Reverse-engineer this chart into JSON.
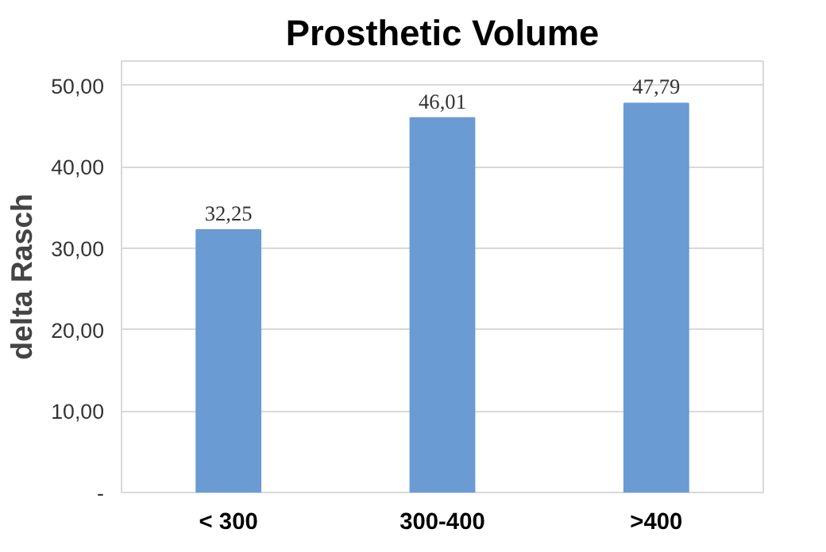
{
  "chart_data": {
    "type": "bar",
    "title": "Prosthetic Volume",
    "ylabel": "delta Rasch",
    "categories": [
      "< 300",
      "300-400",
      ">400"
    ],
    "values": [
      32.25,
      46.01,
      47.79
    ],
    "color": "#6a9bd3",
    "value_labels": [
      "32,25",
      "46,01",
      "47,79"
    ],
    "ylim": [
      0,
      53
    ],
    "yticks": [
      {
        "value": 0,
        "label": "-"
      },
      {
        "value": 10,
        "label": "10,00"
      },
      {
        "value": 20,
        "label": "20,00"
      },
      {
        "value": 30,
        "label": "30,00"
      },
      {
        "value": 40,
        "label": "40,00"
      },
      {
        "value": 50,
        "label": "50,00"
      }
    ],
    "grid": "y"
  }
}
